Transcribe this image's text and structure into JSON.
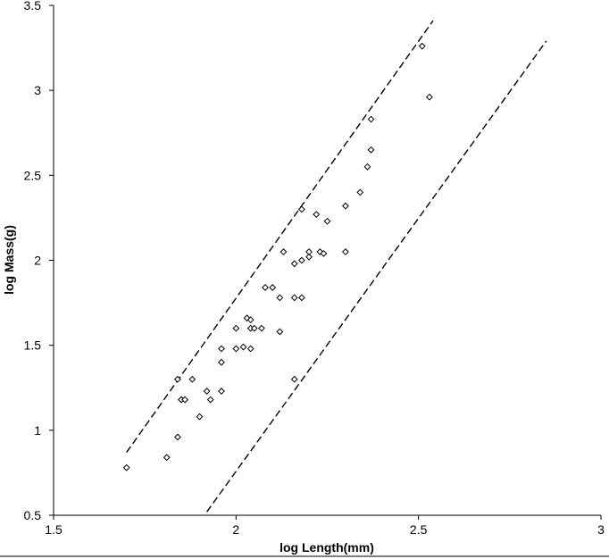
{
  "chart_data": {
    "type": "scatter",
    "title": "",
    "xlabel": "log Length(mm)",
    "ylabel": "log Mass(g)",
    "xlim": [
      1.5,
      3
    ],
    "ylim": [
      0.5,
      3.5
    ],
    "x_ticks": [
      "1.5",
      "2",
      "2.5",
      "3"
    ],
    "y_ticks": [
      "0.5",
      "1",
      "1.5",
      "2",
      "2.5",
      "3",
      "3.5"
    ],
    "grid": false,
    "legend": "none",
    "marker": "open-diamond",
    "points": [
      {
        "x": 1.7,
        "y": 0.78
      },
      {
        "x": 1.81,
        "y": 0.84
      },
      {
        "x": 1.84,
        "y": 0.96
      },
      {
        "x": 1.84,
        "y": 1.3
      },
      {
        "x": 1.85,
        "y": 1.18
      },
      {
        "x": 1.85,
        "y": 1.18
      },
      {
        "x": 1.86,
        "y": 1.18
      },
      {
        "x": 1.88,
        "y": 1.3
      },
      {
        "x": 1.9,
        "y": 1.08
      },
      {
        "x": 1.92,
        "y": 1.23
      },
      {
        "x": 1.93,
        "y": 1.18
      },
      {
        "x": 1.96,
        "y": 1.23
      },
      {
        "x": 1.96,
        "y": 1.4
      },
      {
        "x": 1.96,
        "y": 1.48
      },
      {
        "x": 2.0,
        "y": 1.48
      },
      {
        "x": 2.0,
        "y": 1.6
      },
      {
        "x": 2.02,
        "y": 1.49
      },
      {
        "x": 2.03,
        "y": 1.66
      },
      {
        "x": 2.04,
        "y": 1.65
      },
      {
        "x": 2.04,
        "y": 1.48
      },
      {
        "x": 2.04,
        "y": 1.6
      },
      {
        "x": 2.05,
        "y": 1.6
      },
      {
        "x": 2.07,
        "y": 1.6
      },
      {
        "x": 2.08,
        "y": 1.84
      },
      {
        "x": 2.1,
        "y": 1.84
      },
      {
        "x": 2.12,
        "y": 1.78
      },
      {
        "x": 2.12,
        "y": 1.58
      },
      {
        "x": 2.13,
        "y": 2.05
      },
      {
        "x": 2.16,
        "y": 1.78
      },
      {
        "x": 2.16,
        "y": 1.98
      },
      {
        "x": 2.16,
        "y": 1.3
      },
      {
        "x": 2.18,
        "y": 1.78
      },
      {
        "x": 2.18,
        "y": 2.0
      },
      {
        "x": 2.18,
        "y": 2.3
      },
      {
        "x": 2.2,
        "y": 2.02
      },
      {
        "x": 2.2,
        "y": 2.05
      },
      {
        "x": 2.22,
        "y": 2.27
      },
      {
        "x": 2.23,
        "y": 2.05
      },
      {
        "x": 2.24,
        "y": 2.04
      },
      {
        "x": 2.25,
        "y": 2.23
      },
      {
        "x": 2.3,
        "y": 2.05
      },
      {
        "x": 2.3,
        "y": 2.32
      },
      {
        "x": 2.34,
        "y": 2.4
      },
      {
        "x": 2.36,
        "y": 2.55
      },
      {
        "x": 2.37,
        "y": 2.65
      },
      {
        "x": 2.37,
        "y": 2.83
      },
      {
        "x": 2.51,
        "y": 3.26
      },
      {
        "x": 2.53,
        "y": 2.96
      }
    ],
    "reference_lines": [
      {
        "style": "dashed",
        "from": {
          "x": 1.7,
          "y": 0.87
        },
        "to": {
          "x": 2.54,
          "y": 3.41
        }
      },
      {
        "style": "dashed",
        "from": {
          "x": 1.92,
          "y": 0.52
        },
        "to": {
          "x": 2.85,
          "y": 3.29
        }
      }
    ]
  }
}
